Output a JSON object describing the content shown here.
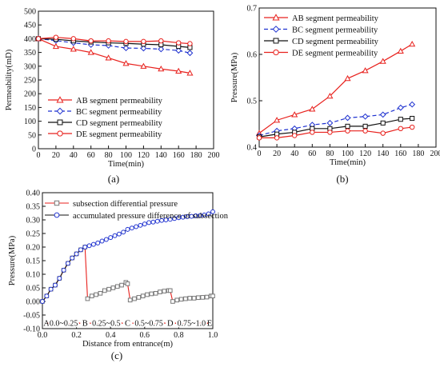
{
  "chart_data": [
    {
      "type": "line",
      "panel_label": "(a)",
      "xlabel": "Time(min)",
      "ylabel": "Permeability(mD)",
      "xlim": [
        0,
        200
      ],
      "ylim": [
        0,
        500
      ],
      "xticks": [
        0,
        20,
        40,
        60,
        80,
        100,
        120,
        140,
        160,
        180,
        200
      ],
      "yticks": [
        0,
        50,
        100,
        150,
        200,
        250,
        300,
        350,
        400,
        450,
        500
      ],
      "legend_position": "bottom-left",
      "grid": false,
      "series": [
        {
          "name": "AB segment permeability",
          "color": "#e8211d",
          "marker": "triangle",
          "dash": "solid",
          "x": [
            0,
            20,
            40,
            60,
            80,
            100,
            120,
            140,
            160,
            173
          ],
          "y": [
            400,
            372,
            362,
            350,
            330,
            310,
            300,
            290,
            282,
            275
          ]
        },
        {
          "name": "BC segment permeability",
          "color": "#1f32d0",
          "marker": "diamond",
          "dash": "dashed",
          "x": [
            0,
            20,
            40,
            60,
            80,
            100,
            120,
            140,
            160,
            173
          ],
          "y": [
            400,
            393,
            385,
            378,
            375,
            366,
            365,
            362,
            357,
            348
          ]
        },
        {
          "name": "CD segment permeability",
          "color": "#111111",
          "marker": "square",
          "dash": "solid",
          "x": [
            0,
            20,
            40,
            60,
            80,
            100,
            120,
            140,
            160,
            173
          ],
          "y": [
            400,
            398,
            392,
            388,
            385,
            383,
            380,
            378,
            372,
            368
          ]
        },
        {
          "name": "DE segment permeability",
          "color": "#e8211d",
          "marker": "circle",
          "dash": "solid",
          "x": [
            0,
            20,
            40,
            60,
            80,
            100,
            120,
            140,
            160,
            173
          ],
          "y": [
            400,
            405,
            400,
            392,
            392,
            390,
            390,
            392,
            385,
            382
          ]
        }
      ]
    },
    {
      "type": "line",
      "panel_label": "(b)",
      "xlabel": "Time(min)",
      "ylabel": "Pressure(MPa)",
      "xlim": [
        0,
        200
      ],
      "ylim": [
        0.4,
        0.7
      ],
      "xticks": [
        0,
        20,
        40,
        60,
        80,
        100,
        120,
        140,
        160,
        180,
        200
      ],
      "yticks": [
        0.4,
        0.5,
        0.6,
        0.7
      ],
      "legend_position": "top-left",
      "grid": false,
      "series": [
        {
          "name": "AB segment permeability",
          "color": "#e8211d",
          "marker": "triangle",
          "dash": "solid",
          "x": [
            0,
            20,
            40,
            60,
            80,
            100,
            120,
            140,
            160,
            173
          ],
          "y": [
            0.43,
            0.458,
            0.47,
            0.482,
            0.51,
            0.548,
            0.565,
            0.585,
            0.607,
            0.622
          ]
        },
        {
          "name": "BC segment permeability",
          "color": "#1f32d0",
          "marker": "diamond",
          "dash": "dashed",
          "x": [
            0,
            20,
            40,
            60,
            80,
            100,
            120,
            140,
            160,
            173
          ],
          "y": [
            0.425,
            0.435,
            0.44,
            0.448,
            0.452,
            0.463,
            0.466,
            0.47,
            0.485,
            0.492
          ]
        },
        {
          "name": "CD segment permeability",
          "color": "#111111",
          "marker": "square",
          "dash": "solid",
          "x": [
            0,
            20,
            40,
            60,
            80,
            100,
            120,
            140,
            160,
            173
          ],
          "y": [
            0.422,
            0.428,
            0.432,
            0.44,
            0.44,
            0.445,
            0.445,
            0.452,
            0.46,
            0.462
          ]
        },
        {
          "name": "DE segment permeability",
          "color": "#e8211d",
          "marker": "circle",
          "dash": "solid",
          "x": [
            0,
            20,
            40,
            60,
            80,
            100,
            120,
            140,
            160,
            173
          ],
          "y": [
            0.42,
            0.42,
            0.425,
            0.432,
            0.432,
            0.435,
            0.435,
            0.43,
            0.44,
            0.443
          ]
        }
      ]
    },
    {
      "type": "line",
      "panel_label": "(c)",
      "xlabel": "Distance from entrance(m)",
      "ylabel": "Pressure(MPa)",
      "xlim": [
        0,
        1.0
      ],
      "ylim": [
        -0.1,
        0.4
      ],
      "xticks": [
        0.0,
        0.2,
        0.4,
        0.6,
        0.8,
        1.0
      ],
      "xtick_labels": [
        "0.0",
        "0.2",
        "0.4",
        "0.6",
        "0.8",
        "1.0"
      ],
      "yticks": [
        -0.1,
        -0.05,
        0.0,
        0.05,
        0.1,
        0.15,
        0.2,
        0.25,
        0.3,
        0.35,
        0.4
      ],
      "ytick_labels": [
        "-0.10",
        "-0.05",
        "0.00",
        "0.05",
        "0.10",
        "0.15",
        "0.20",
        "0.25",
        "0.30",
        "0.35",
        "0.40"
      ],
      "legend_position": "top-left",
      "grid": false,
      "series": [
        {
          "name": "subsection differential pressure",
          "color": "#e8211d",
          "marker_color": "#777777",
          "marker": "square",
          "dash": "solid",
          "x": [
            0.0,
            0.025,
            0.05,
            0.075,
            0.1,
            0.125,
            0.15,
            0.175,
            0.2,
            0.225,
            0.25,
            0.265,
            0.29,
            0.315,
            0.34,
            0.365,
            0.39,
            0.415,
            0.44,
            0.465,
            0.49,
            0.5,
            0.515,
            0.54,
            0.565,
            0.59,
            0.615,
            0.64,
            0.665,
            0.69,
            0.715,
            0.74,
            0.75,
            0.765,
            0.79,
            0.815,
            0.84,
            0.865,
            0.89,
            0.915,
            0.94,
            0.965,
            0.99,
            1.0
          ],
          "y": [
            0.0,
            0.02,
            0.045,
            0.06,
            0.085,
            0.115,
            0.14,
            0.16,
            0.175,
            0.19,
            0.2,
            0.01,
            0.02,
            0.025,
            0.03,
            0.04,
            0.045,
            0.05,
            0.055,
            0.06,
            0.07,
            0.065,
            0.005,
            0.01,
            0.015,
            0.02,
            0.025,
            0.028,
            0.03,
            0.035,
            0.038,
            0.04,
            0.04,
            0.0,
            0.005,
            0.008,
            0.01,
            0.012,
            0.012,
            0.014,
            0.015,
            0.016,
            0.02,
            0.02
          ]
        },
        {
          "name": "accumulated pressure difference of subsection",
          "color": "#111111",
          "marker_color": "#1f32d0",
          "marker": "circle",
          "dash": "solid",
          "x": [
            0.0,
            0.025,
            0.05,
            0.075,
            0.1,
            0.125,
            0.15,
            0.175,
            0.2,
            0.225,
            0.25,
            0.275,
            0.3,
            0.325,
            0.35,
            0.375,
            0.4,
            0.425,
            0.45,
            0.475,
            0.5,
            0.525,
            0.55,
            0.575,
            0.6,
            0.625,
            0.65,
            0.675,
            0.7,
            0.725,
            0.75,
            0.775,
            0.8,
            0.825,
            0.85,
            0.875,
            0.9,
            0.925,
            0.95,
            0.975,
            1.0
          ],
          "y": [
            0.0,
            0.02,
            0.045,
            0.06,
            0.085,
            0.115,
            0.14,
            0.16,
            0.175,
            0.19,
            0.2,
            0.205,
            0.21,
            0.215,
            0.222,
            0.228,
            0.235,
            0.242,
            0.248,
            0.255,
            0.265,
            0.27,
            0.275,
            0.28,
            0.285,
            0.29,
            0.292,
            0.295,
            0.298,
            0.3,
            0.302,
            0.305,
            0.308,
            0.31,
            0.312,
            0.313,
            0.315,
            0.316,
            0.318,
            0.322,
            0.33
          ]
        }
      ],
      "annotations": {
        "point_labels": [
          {
            "text": "A",
            "x": 0.0
          },
          {
            "text": "B",
            "x": 0.25
          },
          {
            "text": "C",
            "x": 0.5
          },
          {
            "text": "D",
            "x": 0.75
          },
          {
            "text": "E",
            "x": 1.0
          }
        ],
        "segment_labels": [
          {
            "text": "0.0~0.25",
            "x": 0.125
          },
          {
            "text": "0.25~0.5",
            "x": 0.375
          },
          {
            "text": "0.5~0.75",
            "x": 0.625
          },
          {
            "text": "0.75~1.0",
            "x": 0.875
          }
        ],
        "segment_arrow_y": -0.08,
        "color": "#e8211d"
      }
    }
  ]
}
